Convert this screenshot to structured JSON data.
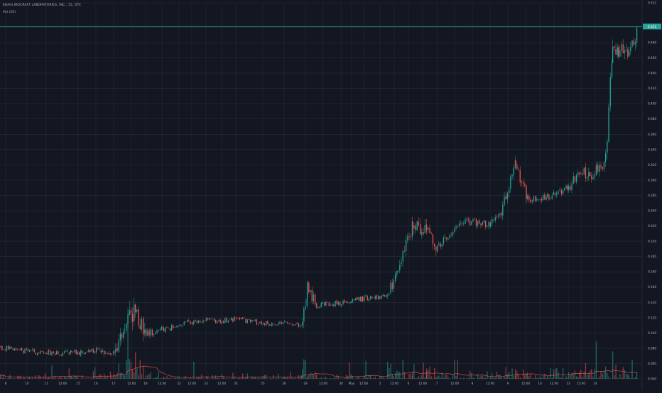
{
  "header": {
    "symbol_line": "KRAIG BIOCRAFT LABORATORIES, INC., 15, OTC",
    "volume_label": "Vol (20)"
  },
  "colors": {
    "background": "#131722",
    "grid": "#2a2e39",
    "up": "#26a69a",
    "down": "#ef5350",
    "ma_line": "#ef5350",
    "last_price_line": "#26a69a",
    "axis_text": "#b2b5be"
  },
  "chart_data": {
    "type": "candlestick",
    "title": "",
    "xlabel": "",
    "ylabel": "",
    "ylim": [
      0.048,
      0.532
    ],
    "y_ticks": [
      "0.532",
      "0.500",
      "0.480",
      "0.460",
      "0.440",
      "0.420",
      "0.400",
      "0.380",
      "0.360",
      "0.340",
      "0.320",
      "0.300",
      "0.280",
      "0.260",
      "0.240",
      "0.220",
      "0.200",
      "0.180",
      "0.160",
      "0.140",
      "0.120",
      "0.100",
      "0.080",
      "0.060",
      "0.040"
    ],
    "last_price": "0.501",
    "x_ticks": [
      "8",
      "10",
      "11",
      "12:00",
      "15",
      "16",
      "17",
      "12:00",
      "18",
      "12:00",
      "22",
      "12:00",
      "23",
      "12:00",
      "24",
      "25",
      "26",
      "29",
      "12:00",
      "30",
      "May",
      "12:00",
      "2",
      "12:00",
      "6",
      "12:00",
      "7",
      "12:00",
      "8",
      "12:00",
      "9",
      "12:00",
      "10",
      "12:00",
      "13",
      "12:00",
      "14"
    ],
    "segments": [
      {
        "x": [
          0,
          30
        ],
        "price": [
          0.081,
          0.077
        ],
        "vol": 1
      },
      {
        "x": [
          30,
          68
        ],
        "price": [
          0.077,
          0.073
        ],
        "vol": 1
      },
      {
        "x": [
          68,
          100
        ],
        "price": [
          0.073,
          0.074
        ],
        "vol": 1
      },
      {
        "x": [
          100,
          135
        ],
        "price": [
          0.074,
          0.076
        ],
        "vol": 1
      },
      {
        "x": [
          135,
          160
        ],
        "price": [
          0.076,
          0.073
        ],
        "vol": 2
      },
      {
        "x": [
          160,
          175
        ],
        "price": [
          0.073,
          0.11
        ],
        "vol": 4
      },
      {
        "x": [
          175,
          190
        ],
        "price": [
          0.11,
          0.128
        ],
        "vol": 6
      },
      {
        "x": [
          190,
          205
        ],
        "price": [
          0.128,
          0.1
        ],
        "vol": 5
      },
      {
        "x": [
          205,
          230
        ],
        "price": [
          0.1,
          0.105
        ],
        "vol": 2
      },
      {
        "x": [
          230,
          270
        ],
        "price": [
          0.105,
          0.115
        ],
        "vol": 1
      },
      {
        "x": [
          270,
          330
        ],
        "price": [
          0.115,
          0.117
        ],
        "vol": 1
      },
      {
        "x": [
          330,
          380
        ],
        "price": [
          0.117,
          0.112
        ],
        "vol": 1
      },
      {
        "x": [
          380,
          425
        ],
        "price": [
          0.112,
          0.11
        ],
        "vol": 1
      },
      {
        "x": [
          425,
          432
        ],
        "price": [
          0.11,
          0.16
        ],
        "vol": 5
      },
      {
        "x": [
          432,
          445
        ],
        "price": [
          0.16,
          0.135
        ],
        "vol": 3
      },
      {
        "x": [
          445,
          510
        ],
        "price": [
          0.135,
          0.145
        ],
        "vol": 1
      },
      {
        "x": [
          510,
          545
        ],
        "price": [
          0.145,
          0.15
        ],
        "vol": 1
      },
      {
        "x": [
          545,
          560
        ],
        "price": [
          0.15,
          0.18
        ],
        "vol": 3
      },
      {
        "x": [
          560,
          580
        ],
        "price": [
          0.18,
          0.24
        ],
        "vol": 4
      },
      {
        "x": [
          580,
          600
        ],
        "price": [
          0.24,
          0.235
        ],
        "vol": 4
      },
      {
        "x": [
          600,
          615
        ],
        "price": [
          0.235,
          0.212
        ],
        "vol": 4
      },
      {
        "x": [
          615,
          650
        ],
        "price": [
          0.212,
          0.245
        ],
        "vol": 2
      },
      {
        "x": [
          650,
          690
        ],
        "price": [
          0.245,
          0.243
        ],
        "vol": 2
      },
      {
        "x": [
          690,
          705
        ],
        "price": [
          0.243,
          0.26
        ],
        "vol": 2
      },
      {
        "x": [
          705,
          725
        ],
        "price": [
          0.26,
          0.32
        ],
        "vol": 3
      },
      {
        "x": [
          725,
          742
        ],
        "price": [
          0.32,
          0.275
        ],
        "vol": 3
      },
      {
        "x": [
          742,
          770
        ],
        "price": [
          0.275,
          0.278
        ],
        "vol": 2
      },
      {
        "x": [
          770,
          800
        ],
        "price": [
          0.278,
          0.29
        ],
        "vol": 2
      },
      {
        "x": [
          800,
          815
        ],
        "price": [
          0.29,
          0.315
        ],
        "vol": 3
      },
      {
        "x": [
          815,
          830
        ],
        "price": [
          0.315,
          0.305
        ],
        "vol": 3
      },
      {
        "x": [
          830,
          852
        ],
        "price": [
          0.305,
          0.325
        ],
        "vol": 3
      },
      {
        "x": [
          852,
          862
        ],
        "price": [
          0.325,
          0.48
        ],
        "vol": 5
      },
      {
        "x": [
          862,
          870
        ],
        "price": [
          0.48,
          0.47
        ],
        "vol": 5
      },
      {
        "x": [
          870,
          885
        ],
        "price": [
          0.47,
          0.465
        ],
        "vol": 4
      },
      {
        "x": [
          885,
          898
        ],
        "price": [
          0.465,
          0.501
        ],
        "vol": 4
      }
    ]
  }
}
